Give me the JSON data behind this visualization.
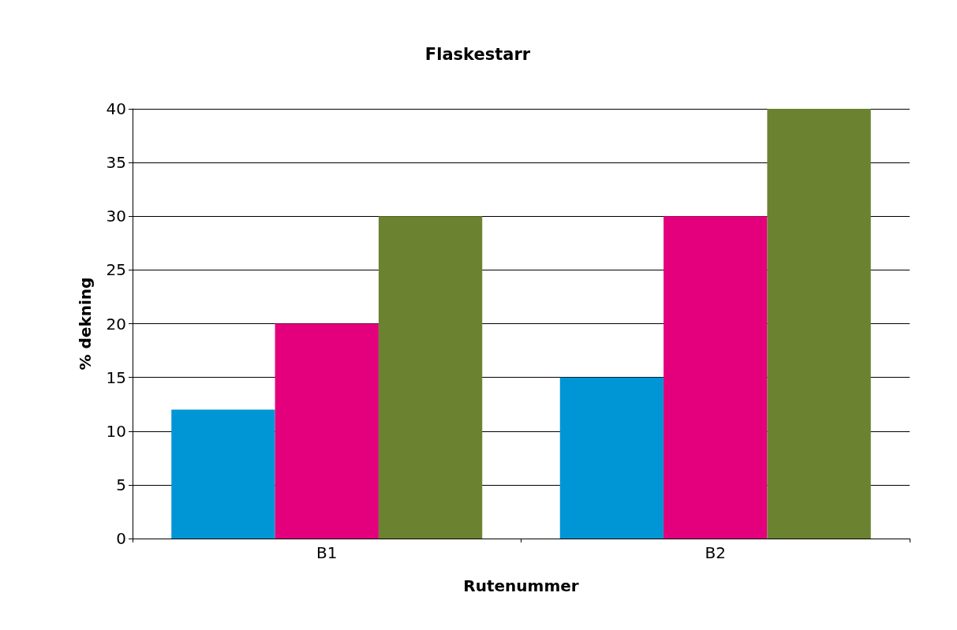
{
  "chart_data": {
    "type": "bar",
    "title": "Flaskestarr",
    "xlabel": "Rutenummer",
    "ylabel": "% dekning",
    "categories": [
      "B1",
      "B2"
    ],
    "series": [
      {
        "color": "#0096d6",
        "values": [
          12,
          15
        ]
      },
      {
        "color": "#e4007c",
        "values": [
          20,
          30
        ]
      },
      {
        "color": "#6b8230",
        "values": [
          30,
          40
        ]
      }
    ],
    "ylim": [
      0,
      40
    ],
    "yticks": [
      0,
      5,
      10,
      15,
      20,
      25,
      30,
      35,
      40
    ],
    "grid": "y"
  }
}
